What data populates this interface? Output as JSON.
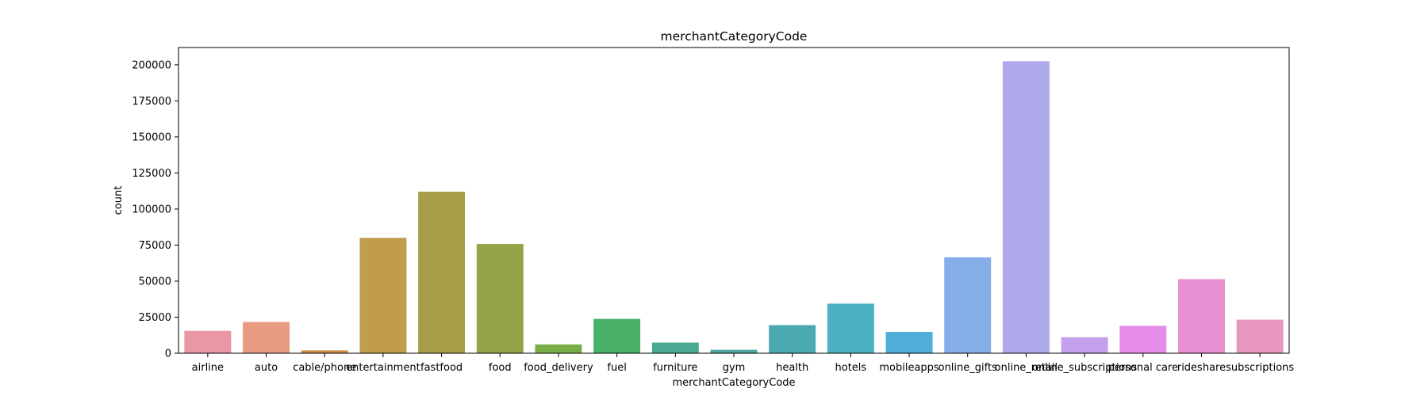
{
  "chart_data": {
    "type": "bar",
    "title": "merchantCategoryCode",
    "xlabel": "merchantCategoryCode",
    "ylabel": "count",
    "ylim": [
      0,
      212000
    ],
    "yticks": [
      0,
      25000,
      50000,
      75000,
      100000,
      125000,
      150000,
      175000,
      200000
    ],
    "grid": false,
    "categories": [
      "airline",
      "auto",
      "cable/phone",
      "entertainment",
      "fastfood",
      "food",
      "food_delivery",
      "fuel",
      "furniture",
      "gym",
      "health",
      "hotels",
      "mobileapps",
      "online_gifts",
      "online_retail",
      "online_subscriptions",
      "personal care",
      "rideshare",
      "subscriptions"
    ],
    "values": [
      15500,
      21700,
      2000,
      80000,
      112000,
      75800,
      6100,
      23800,
      7400,
      2400,
      19500,
      34400,
      14800,
      66500,
      202500,
      11100,
      19000,
      51400,
      23300
    ],
    "colors": [
      "#ea96a3",
      "#e79c81",
      "#d08e4b",
      "#c09c4b",
      "#a99e48",
      "#96a348",
      "#79ad48",
      "#48b068",
      "#4bab92",
      "#4ca79f",
      "#4ba9b0",
      "#4db1c5",
      "#50acd8",
      "#86aee8",
      "#aea9eb",
      "#c3a0eb",
      "#e58ce9",
      "#e88fd2",
      "#e897bf"
    ]
  }
}
